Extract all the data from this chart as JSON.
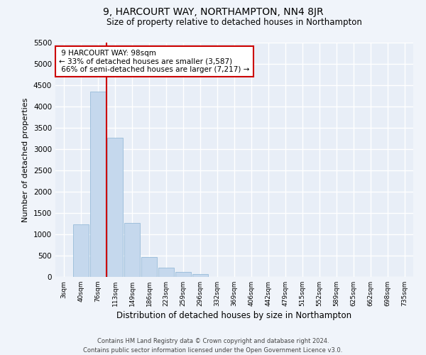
{
  "title": "9, HARCOURT WAY, NORTHAMPTON, NN4 8JR",
  "subtitle": "Size of property relative to detached houses in Northampton",
  "xlabel": "Distribution of detached houses by size in Northampton",
  "ylabel": "Number of detached properties",
  "bar_color": "#c5d8ed",
  "bar_edge_color": "#8ab4d4",
  "background_color": "#e8eef7",
  "grid_color": "#ffffff",
  "fig_color": "#f0f4fa",
  "categories": [
    "3sqm",
    "40sqm",
    "76sqm",
    "113sqm",
    "149sqm",
    "186sqm",
    "223sqm",
    "259sqm",
    "296sqm",
    "332sqm",
    "369sqm",
    "406sqm",
    "442sqm",
    "479sqm",
    "515sqm",
    "552sqm",
    "589sqm",
    "625sqm",
    "662sqm",
    "698sqm",
    "735sqm"
  ],
  "values": [
    0,
    1230,
    4350,
    3270,
    1270,
    470,
    220,
    110,
    70,
    0,
    0,
    0,
    0,
    0,
    0,
    0,
    0,
    0,
    0,
    0,
    0
  ],
  "ylim": [
    0,
    5500
  ],
  "yticks": [
    0,
    500,
    1000,
    1500,
    2000,
    2500,
    3000,
    3500,
    4000,
    4500,
    5000,
    5500
  ],
  "property_label": "9 HARCOURT WAY: 98sqm",
  "pct_smaller": 33,
  "pct_smaller_count": "3,587",
  "pct_larger": 66,
  "pct_larger_count": "7,217",
  "red_line_color": "#cc0000",
  "annotation_box_color": "#ffffff",
  "annotation_box_edge": "#cc0000",
  "red_line_index": 2,
  "footer1": "Contains HM Land Registry data © Crown copyright and database right 2024.",
  "footer2": "Contains public sector information licensed under the Open Government Licence v3.0."
}
